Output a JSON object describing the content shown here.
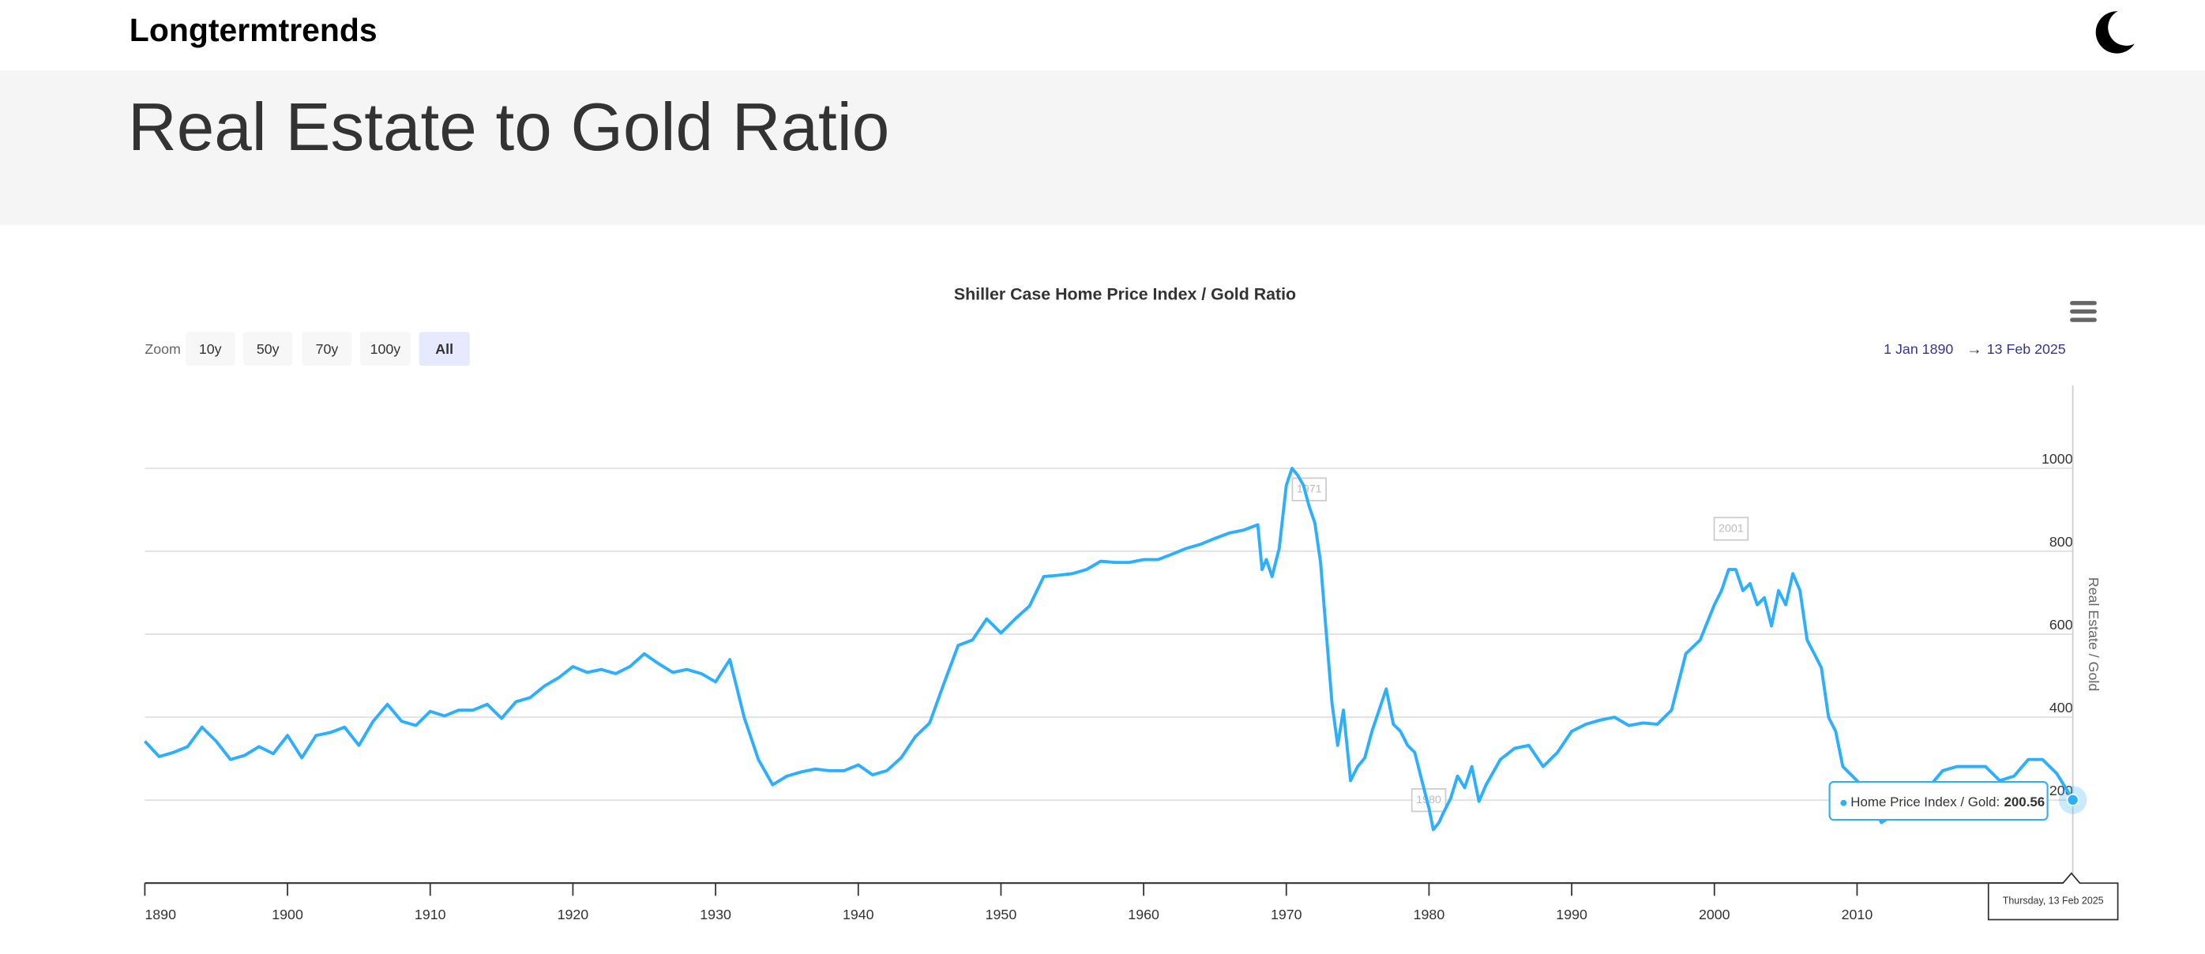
{
  "site_name": "Longtermtrends",
  "page_title": "Real Estate to Gold Ratio",
  "chart_data": {
    "type": "line",
    "title": "Shiller Case Home Price Index / Gold Ratio",
    "y_axis_label": "Real Estate / Gold",
    "zoom_label": "Zoom",
    "zoom_buttons": [
      "10y",
      "50y",
      "70y",
      "100y",
      "All"
    ],
    "range_start": "1 Jan 1890",
    "range_arrow": "→",
    "range_end": "13 Feb 2025",
    "color": "#2caffe",
    "grid": true,
    "xlim": [
      1890,
      2025.12
    ],
    "ylim": [
      0,
      1200
    ],
    "xticks": [
      1890,
      1900,
      1910,
      1920,
      1930,
      1940,
      1950,
      1960,
      1970,
      1980,
      1990,
      2000,
      2010
    ],
    "yticks": [
      200,
      400,
      600,
      800,
      1000
    ],
    "annotations": [
      "1971",
      "2001",
      "1980"
    ],
    "tooltip": {
      "label": "Home Price Index / Gold:",
      "date": "Thursday, 13 Feb 2025"
    },
    "x": [
      1890,
      1891,
      1892,
      1893,
      1894,
      1895,
      1896,
      1897,
      1898,
      1899,
      1900,
      1901,
      1902,
      1903,
      1904,
      1905,
      1906,
      1907,
      1908,
      1909,
      1910,
      1911,
      1912,
      1913,
      1914,
      1915,
      1916,
      1917,
      1918,
      1919,
      1920,
      1921,
      1922,
      1923,
      1924,
      1925,
      1926,
      1927,
      1928,
      1929,
      1930,
      1931,
      1932,
      1933,
      1934,
      1935,
      1936,
      1937,
      1938,
      1939,
      1940,
      1941,
      1942,
      1943,
      1944,
      1945,
      1946,
      1947,
      1948,
      1949,
      1950,
      1951,
      1952,
      1953,
      1954,
      1955,
      1956,
      1957,
      1958,
      1959,
      1960,
      1961,
      1962,
      1963,
      1964,
      1965,
      1966,
      1967,
      1968,
      1968.3,
      1968.6,
      1969,
      1969.5,
      1970,
      1970.4,
      1970.8,
      1971.2,
      1971.6,
      1972,
      1972.4,
      1972.8,
      1973.2,
      1973.6,
      1974,
      1974.5,
      1975,
      1975.5,
      1976,
      1976.5,
      1977,
      1977.5,
      1978,
      1978.5,
      1979,
      1979.5,
      1980,
      1980.3,
      1980.7,
      1981,
      1981.5,
      1982,
      1982.5,
      1983,
      1983.5,
      1984,
      1985,
      1986,
      1987,
      1988,
      1989,
      1990,
      1991,
      1992,
      1993,
      1994,
      1995,
      1996,
      1997,
      1998,
      1999,
      2000,
      2000.5,
      2001,
      2001.5,
      2002,
      2002.5,
      2003,
      2003.5,
      2004,
      2004.5,
      2005,
      2005.5,
      2006,
      2006.5,
      2007,
      2007.5,
      2008,
      2008.5,
      2009,
      2009.5,
      2010,
      2011,
      2011.7,
      2012.5,
      2013,
      2014,
      2015,
      2016,
      2017,
      2018,
      2019,
      2020,
      2021,
      2022,
      2023,
      2024,
      2025.12
    ],
    "values": [
      342,
      305,
      315,
      329,
      376,
      342,
      298,
      308,
      329,
      312,
      356,
      302,
      356,
      363,
      376,
      332,
      390,
      431,
      390,
      380,
      414,
      403,
      417,
      417,
      431,
      397,
      437,
      447,
      475,
      495,
      522,
      508,
      515,
      505,
      522,
      553,
      529,
      508,
      515,
      505,
      485,
      539,
      400,
      298,
      237,
      258,
      268,
      275,
      271,
      271,
      285,
      261,
      271,
      302,
      353,
      386,
      481,
      573,
      586,
      637,
      603,
      637,
      668,
      739,
      742,
      746,
      756,
      776,
      773,
      773,
      780,
      780,
      793,
      807,
      817,
      831,
      844,
      851,
      864,
      756,
      780,
      739,
      807,
      959,
      1000,
      983,
      959,
      908,
      868,
      773,
      603,
      434,
      332,
      417,
      247,
      281,
      302,
      366,
      417,
      468,
      383,
      366,
      332,
      315,
      247,
      180,
      129,
      146,
      169,
      203,
      258,
      230,
      281,
      197,
      237,
      298,
      325,
      332,
      281,
      315,
      366,
      383,
      393,
      400,
      380,
      386,
      383,
      417,
      553,
      586,
      671,
      705,
      756,
      756,
      705,
      722,
      671,
      688,
      620,
      705,
      671,
      746,
      705,
      586,
      553,
      519,
      400,
      366,
      281,
      264,
      247,
      203,
      146,
      163,
      197,
      214,
      230,
      271,
      281,
      281,
      281,
      247,
      258,
      298,
      298,
      264,
      200.56
    ]
  }
}
